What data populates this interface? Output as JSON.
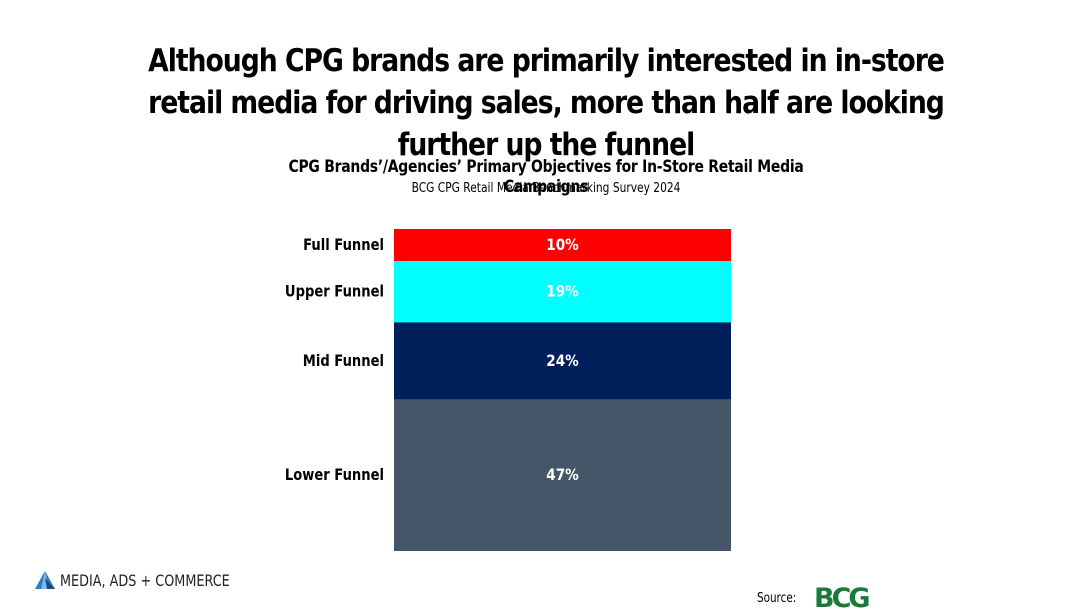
{
  "headline": "Although CPG brands are primarily interested in in-store retail media for driving sales, more than half are looking further up the funnel",
  "chart_data": {
    "type": "bar",
    "stacked": true,
    "title": "CPG Brands’/Agencies’ Primary Objectives for In-Store Retail Media Campaigns",
    "subtitle": "BCG CPG Retail Media Benchmarking Survey 2024",
    "categories": [
      "Full Funnel",
      "Upper Funnel",
      "Mid Funnel",
      "Lower Funnel"
    ],
    "values": [
      10,
      19,
      24,
      47
    ],
    "value_labels": [
      "10%",
      "19%",
      "24%",
      "47%"
    ],
    "colors": [
      "#ff0000",
      "#00ffff",
      "#001f5b",
      "#465669"
    ],
    "grid": false,
    "legend": "none"
  },
  "footer": {
    "brand": "MEDIA, ADS + COMMERCE",
    "source_label": "Source:",
    "source_logo": "BCG"
  },
  "icons": {
    "brand_icon": "triangle-logo-icon"
  }
}
